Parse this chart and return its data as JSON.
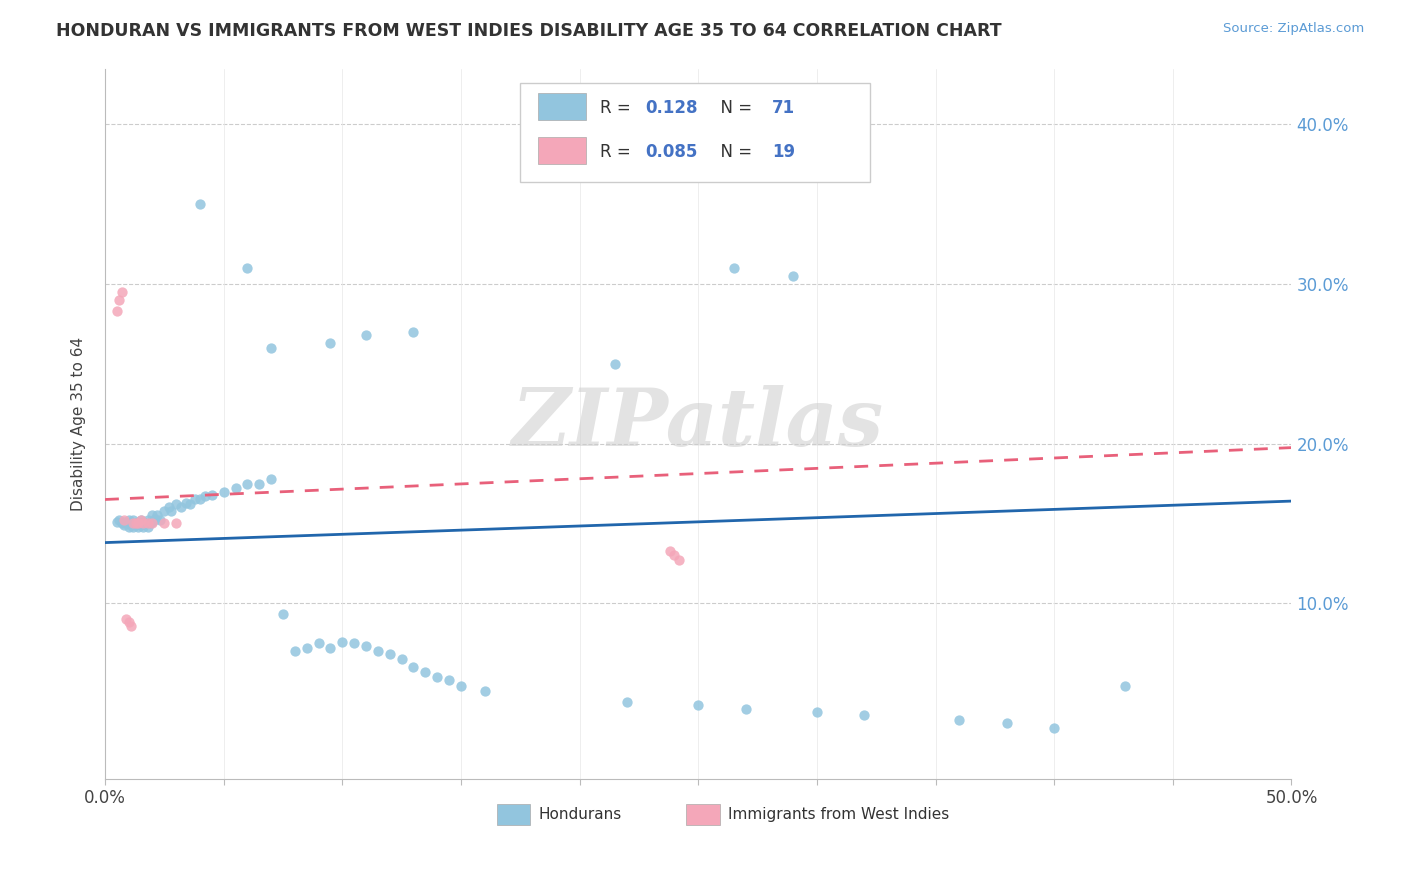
{
  "title": "HONDURAN VS IMMIGRANTS FROM WEST INDIES DISABILITY AGE 35 TO 64 CORRELATION CHART",
  "source_text": "Source: ZipAtlas.com",
  "ylabel": "Disability Age 35 to 64",
  "xlim": [
    0.0,
    0.5
  ],
  "ylim": [
    -0.01,
    0.435
  ],
  "xticks": [
    0.0,
    0.05,
    0.1,
    0.15,
    0.2,
    0.25,
    0.3,
    0.35,
    0.4,
    0.45,
    0.5
  ],
  "xtick_labels": [
    "0.0%",
    "",
    "",
    "",
    "",
    "",
    "",
    "",
    "",
    "",
    "50.0%"
  ],
  "yticks": [
    0.0,
    0.1,
    0.2,
    0.3,
    0.4
  ],
  "ytick_labels": [
    "",
    "10.0%",
    "20.0%",
    "30.0%",
    "40.0%"
  ],
  "blue_color": "#92c5de",
  "pink_color": "#f4a7b9",
  "blue_line_color": "#2166ac",
  "pink_line_color": "#e8607a",
  "legend_R1": "0.128",
  "legend_N1": "71",
  "legend_R2": "0.085",
  "legend_N2": "19",
  "watermark": "ZIPatlas",
  "blue_x": [
    0.005,
    0.007,
    0.008,
    0.009,
    0.01,
    0.01,
    0.01,
    0.011,
    0.012,
    0.012,
    0.013,
    0.013,
    0.014,
    0.014,
    0.015,
    0.015,
    0.016,
    0.016,
    0.017,
    0.017,
    0.018,
    0.018,
    0.019,
    0.02,
    0.02,
    0.021,
    0.022,
    0.022,
    0.023,
    0.025,
    0.026,
    0.027,
    0.028,
    0.03,
    0.03,
    0.032,
    0.033,
    0.034,
    0.035,
    0.036,
    0.038,
    0.039,
    0.04,
    0.042,
    0.043,
    0.045,
    0.047,
    0.05,
    0.052,
    0.055,
    0.06,
    0.065,
    0.068,
    0.07,
    0.075,
    0.08,
    0.085,
    0.09,
    0.095,
    0.1,
    0.11,
    0.12,
    0.13,
    0.14,
    0.15,
    0.16,
    0.18,
    0.2,
    0.22,
    0.25,
    0.43
  ],
  "blue_y": [
    0.15,
    0.148,
    0.15,
    0.152,
    0.15,
    0.152,
    0.148,
    0.15,
    0.15,
    0.148,
    0.152,
    0.148,
    0.15,
    0.15,
    0.152,
    0.148,
    0.152,
    0.148,
    0.15,
    0.15,
    0.152,
    0.148,
    0.15,
    0.155,
    0.15,
    0.152,
    0.155,
    0.15,
    0.152,
    0.158,
    0.155,
    0.158,
    0.155,
    0.16,
    0.155,
    0.16,
    0.158,
    0.162,
    0.16,
    0.162,
    0.165,
    0.16,
    0.165,
    0.165,
    0.162,
    0.168,
    0.165,
    0.17,
    0.168,
    0.172,
    0.175,
    0.175,
    0.178,
    0.178,
    0.092,
    0.068,
    0.072,
    0.075,
    0.072,
    0.075,
    0.075,
    0.072,
    0.068,
    0.06,
    0.055,
    0.052,
    0.048,
    0.04,
    0.038,
    0.035,
    0.048
  ],
  "blue_x_extra": [
    0.04,
    0.06,
    0.08,
    0.1,
    0.12,
    0.14,
    0.22,
    0.27,
    0.3
  ],
  "blue_y_extra": [
    0.35,
    0.31,
    0.26,
    0.26,
    0.265,
    0.27,
    0.25,
    0.31,
    0.305
  ],
  "pink_x": [
    0.005,
    0.006,
    0.007,
    0.008,
    0.009,
    0.01,
    0.011,
    0.012,
    0.013,
    0.014,
    0.015,
    0.016,
    0.018,
    0.02,
    0.025,
    0.03,
    0.24,
    0.24,
    0.24
  ],
  "pink_y": [
    0.15,
    0.28,
    0.29,
    0.255,
    0.25,
    0.15,
    0.15,
    0.09,
    0.085,
    0.088,
    0.15,
    0.15,
    0.15,
    0.15,
    0.15,
    0.15,
    0.13,
    0.127,
    0.125
  ]
}
